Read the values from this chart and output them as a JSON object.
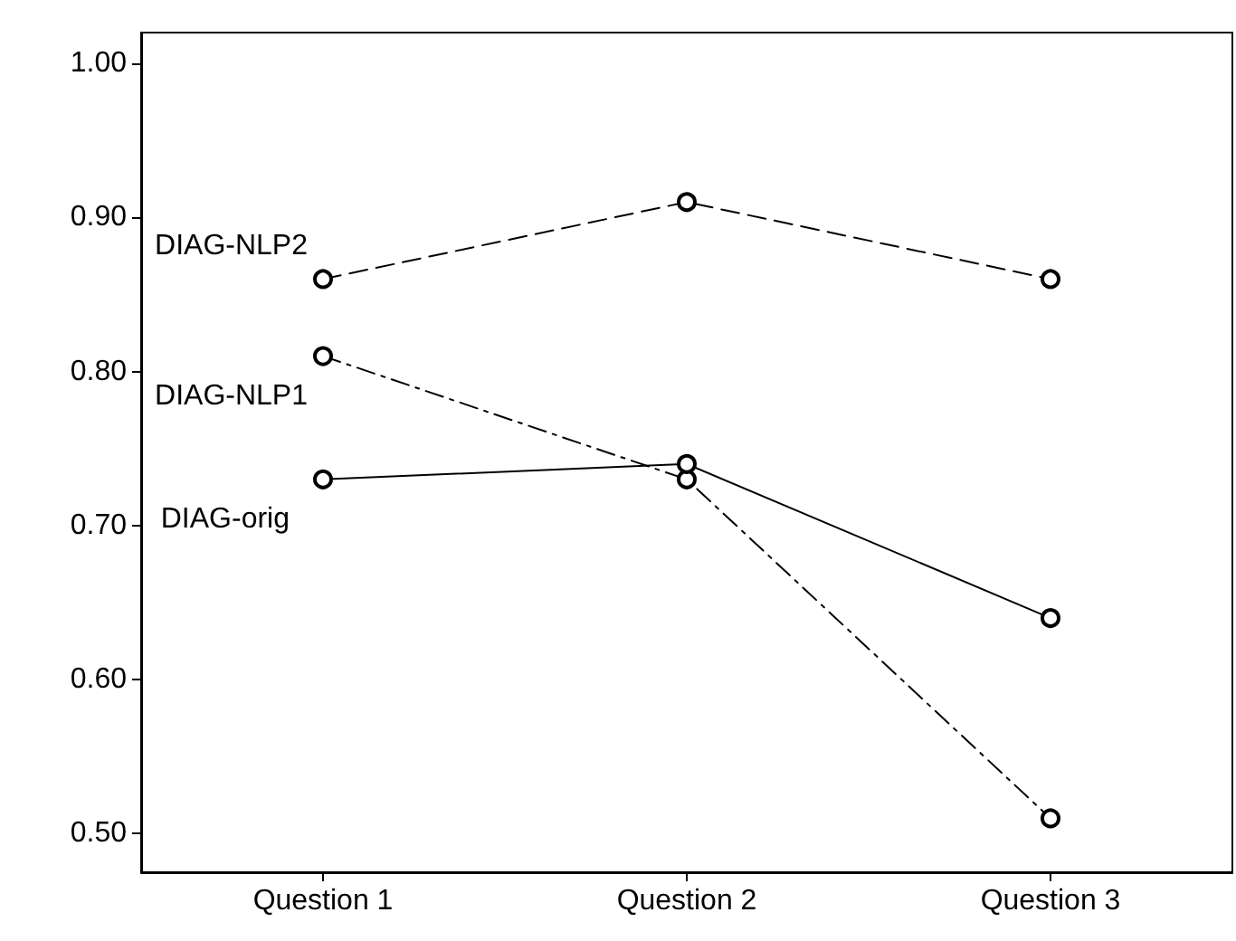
{
  "chart_data": {
    "type": "line",
    "categories": [
      "Question 1",
      "Question 2",
      "Question 3"
    ],
    "series": [
      {
        "name": "DIAG-NLP2",
        "color": "#000000",
        "line_style": "dashed",
        "values": [
          0.86,
          0.91,
          0.86
        ]
      },
      {
        "name": "DIAG-NLP1",
        "color": "#000000",
        "line_style": "dashdot",
        "values": [
          0.81,
          0.73,
          0.51
        ]
      },
      {
        "name": "DIAG-orig",
        "color": "#000000",
        "line_style": "solid",
        "values": [
          0.73,
          0.74,
          0.64
        ]
      }
    ],
    "ylim": [
      0.475,
      1.02
    ],
    "yticks": [
      {
        "value": 0.5,
        "label": "0.50"
      },
      {
        "value": 0.6,
        "label": "0.60"
      },
      {
        "value": 0.7,
        "label": "0.70"
      },
      {
        "value": 0.8,
        "label": "0.80"
      },
      {
        "value": 0.9,
        "label": "0.90"
      },
      {
        "value": 1.0,
        "label": "1.00"
      }
    ],
    "marker": "circle",
    "grid": false,
    "legend": false
  }
}
